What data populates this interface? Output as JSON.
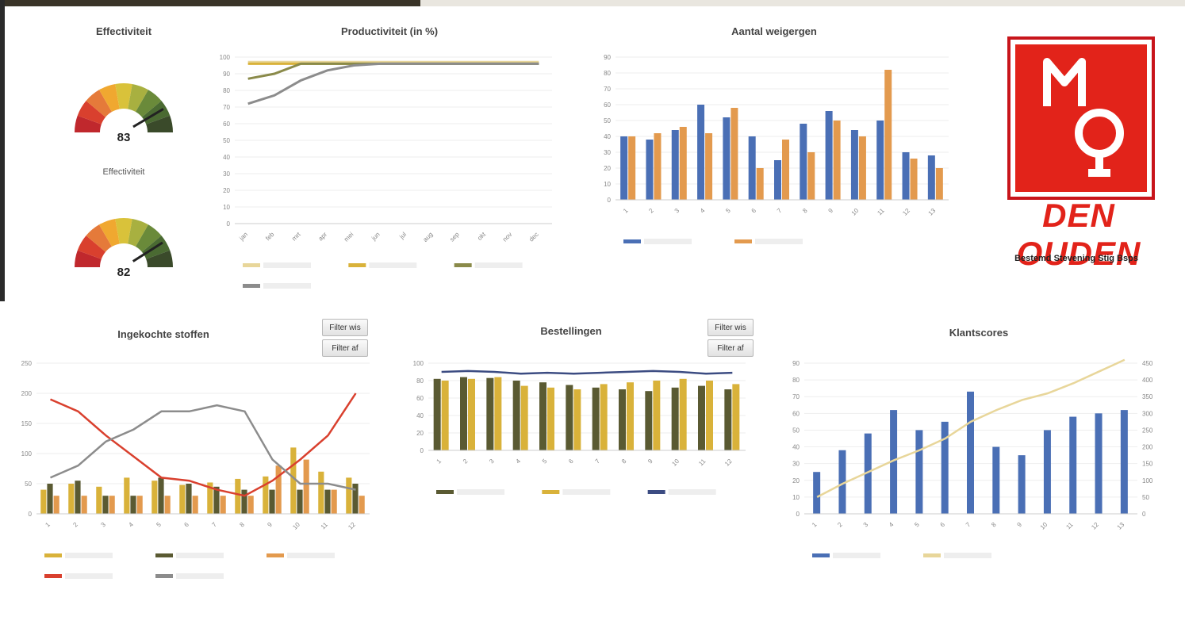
{
  "gauges": {
    "title": "Effectiviteit",
    "gauge1": {
      "value": "83",
      "label": "Effectiviteit",
      "level": 0.83
    },
    "gauge2": {
      "value": "82",
      "label": "",
      "level": 0.82
    }
  },
  "colors": {
    "blue": "#4a6fb5",
    "orange": "#e39a4e",
    "gold": "#d9b23a",
    "olive": "#8a8a4a",
    "darkolive": "#5a5a32",
    "beige": "#e8d69a",
    "red": "#d9402e",
    "navy": "#3c4c82",
    "gray": "#8c8c8c",
    "brand_red": "#e2231a"
  },
  "slicers": {
    "verbruik": {
      "btn1": "Filter wis",
      "btn2": "Filter af"
    },
    "bestellingen": {
      "btn1": "Filter wis",
      "btn2": "Filter af"
    }
  },
  "logo": {
    "name": "DEN OUDEN",
    "tagline": "Bestemd Stevening Stig Bsps"
  },
  "chart_data": [
    {
      "id": "productivity",
      "type": "line",
      "title": "Productiviteit (in %)",
      "ylim": [
        0,
        100
      ],
      "yticks": [
        "100",
        "90",
        "80",
        "70",
        "60",
        "50",
        "40",
        "30",
        "20",
        "10",
        "0"
      ],
      "x": [
        "jan",
        "feb",
        "mrt",
        "apr",
        "mei",
        "jun",
        "jul",
        "aug",
        "sep",
        "okt",
        "nov",
        "dec"
      ],
      "series": [
        {
          "color": "#e8d69a",
          "values": [
            97,
            97,
            97,
            97,
            97,
            97,
            97,
            97,
            97,
            97,
            97,
            97
          ]
        },
        {
          "color": "#d9b23a",
          "values": [
            96,
            96,
            96,
            96,
            96,
            96,
            96,
            96,
            96,
            96,
            96,
            96
          ]
        },
        {
          "color": "#8a8a4a",
          "values": [
            87,
            90,
            96,
            96,
            96,
            96,
            96,
            96,
            96,
            96,
            96,
            96
          ]
        },
        {
          "color": "#8c8c8c",
          "values": [
            72,
            77,
            86,
            92,
            95,
            96,
            96,
            96,
            96,
            96,
            96,
            96
          ]
        }
      ],
      "legend_position": "bottom"
    },
    {
      "id": "weekly",
      "type": "bar",
      "title": "Aantal weigergen",
      "ylim": [
        0,
        90
      ],
      "yticks": [
        "90",
        "80",
        "70",
        "60",
        "50",
        "40",
        "30",
        "20",
        "10",
        "0"
      ],
      "categories": [
        "1",
        "2",
        "3",
        "4",
        "5",
        "6",
        "7",
        "8",
        "9",
        "10",
        "11",
        "12",
        "13"
      ],
      "series": [
        {
          "color": "#4a6fb5",
          "values": [
            40,
            38,
            44,
            60,
            52,
            40,
            25,
            48,
            56,
            44,
            50,
            30,
            28
          ]
        },
        {
          "color": "#e39a4e",
          "values": [
            40,
            42,
            46,
            42,
            58,
            20,
            38,
            30,
            50,
            40,
            82,
            26,
            20
          ]
        }
      ],
      "legend_position": "bottom"
    },
    {
      "id": "verbruik",
      "type": "bar",
      "title": "Ingekochte stoffen",
      "ylim": [
        0,
        250
      ],
      "yticks": [
        "250",
        "200",
        "150",
        "100",
        "50",
        "0"
      ],
      "categories": [
        "1",
        "2",
        "3",
        "4",
        "5",
        "6",
        "7",
        "8",
        "9",
        "10",
        "11",
        "12"
      ],
      "series": [
        {
          "color": "#d9b23a",
          "values": [
            40,
            50,
            45,
            60,
            55,
            48,
            52,
            58,
            62,
            110,
            70,
            60
          ]
        },
        {
          "color": "#5a5a32",
          "values": [
            50,
            55,
            30,
            30,
            60,
            50,
            45,
            40,
            40,
            40,
            40,
            50
          ]
        },
        {
          "color": "#e39a4e",
          "values": [
            30,
            30,
            30,
            30,
            30,
            30,
            30,
            30,
            80,
            90,
            40,
            30
          ]
        }
      ],
      "lines": [
        {
          "color": "#d9402e",
          "values": [
            190,
            170,
            130,
            95,
            60,
            55,
            40,
            30,
            55,
            90,
            130,
            200
          ]
        },
        {
          "color": "#8c8c8c",
          "values": [
            60,
            80,
            120,
            140,
            170,
            170,
            180,
            170,
            90,
            50,
            50,
            40
          ]
        }
      ],
      "legend_position": "bottom"
    },
    {
      "id": "bestellingen",
      "type": "bar",
      "title": "Bestellingen",
      "ylim": [
        0,
        100
      ],
      "yticks": [
        "100",
        "80",
        "60",
        "40",
        "20",
        "0"
      ],
      "categories": [
        "1",
        "2",
        "3",
        "4",
        "5",
        "6",
        "7",
        "8",
        "9",
        "10",
        "11",
        "12"
      ],
      "series": [
        {
          "color": "#5a5a32",
          "values": [
            82,
            84,
            83,
            80,
            78,
            75,
            72,
            70,
            68,
            72,
            74,
            70
          ]
        },
        {
          "color": "#d9b23a",
          "values": [
            80,
            82,
            84,
            74,
            72,
            70,
            76,
            78,
            80,
            82,
            80,
            76
          ]
        }
      ],
      "lines": [
        {
          "color": "#3c4c82",
          "values": [
            90,
            91,
            90,
            88,
            89,
            88,
            89,
            90,
            91,
            90,
            88,
            89
          ]
        }
      ],
      "legend_position": "bottom"
    },
    {
      "id": "scores",
      "type": "bar",
      "title": "Klantscores",
      "ylim": [
        0,
        90
      ],
      "yticks": [
        "90",
        "80",
        "70",
        "60",
        "50",
        "40",
        "30",
        "20",
        "10",
        "0"
      ],
      "y2ticks": [
        "450",
        "400",
        "350",
        "300",
        "250",
        "200",
        "150",
        "100",
        "50",
        "0"
      ],
      "categories": [
        "1",
        "2",
        "3",
        "4",
        "5",
        "6",
        "7",
        "8",
        "9",
        "10",
        "11",
        "12",
        "13"
      ],
      "series": [
        {
          "color": "#4a6fb5",
          "values": [
            25,
            38,
            48,
            62,
            50,
            55,
            73,
            40,
            35,
            50,
            58,
            60,
            62
          ]
        }
      ],
      "lines": [
        {
          "color": "#e8d69a",
          "values": [
            10,
            18,
            25,
            32,
            38,
            45,
            55,
            62,
            68,
            72,
            78,
            85,
            92
          ]
        }
      ],
      "legend_position": "bottom"
    }
  ]
}
